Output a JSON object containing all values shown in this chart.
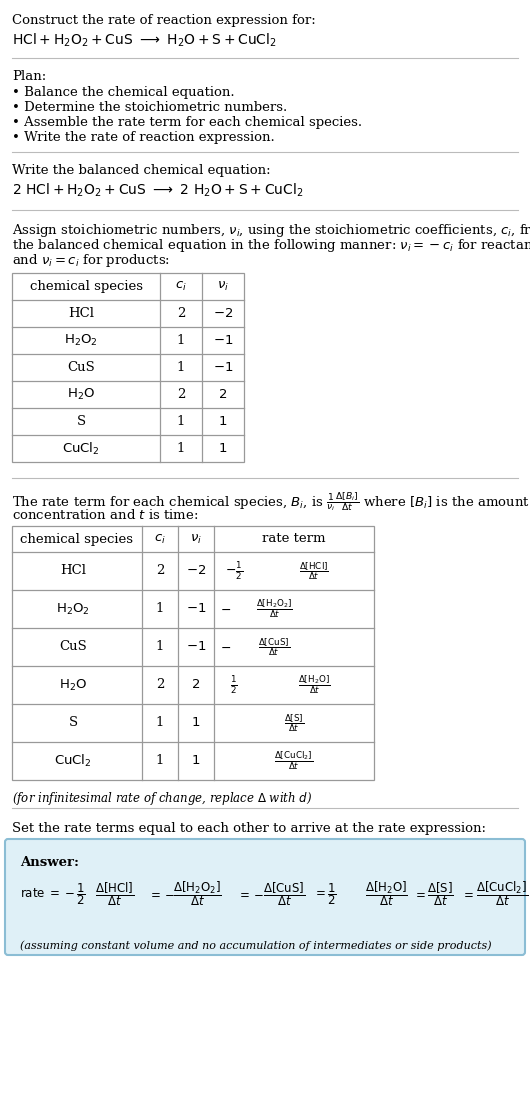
{
  "bg_color": "#ffffff",
  "text_color": "#000000",
  "title": "Construct the rate of reaction expression for:",
  "plan_header": "Plan:",
  "plan_items": [
    "• Balance the chemical equation.",
    "• Determine the stoichiometric numbers.",
    "• Assemble the rate term for each chemical species.",
    "• Write the rate of reaction expression."
  ],
  "balanced_header": "Write the balanced chemical equation:",
  "stoich_assign_lines": [
    "Assign stoichiometric numbers, $\\nu_i$, using the stoichiometric coefficients, $c_i$, from",
    "the balanced chemical equation in the following manner: $\\nu_i = -c_i$ for reactants",
    "and $\\nu_i = c_i$ for products:"
  ],
  "rate_term_line1": "The rate term for each chemical species, $B_i$, is $\\frac{1}{\\nu_i}\\frac{\\Delta[B_i]}{\\Delta t}$ where $[B_i]$ is the amount",
  "rate_term_line2": "concentration and $t$ is time:",
  "infinitesimal_note": "(for infinitesimal rate of change, replace $\\Delta$ with $d$)",
  "set_equal_text": "Set the rate terms equal to each other to arrive at the rate expression:",
  "answer_box_color": "#dff0f7",
  "answer_border_color": "#8bbdd4",
  "answer_label": "Answer:",
  "answer_note": "(assuming constant volume and no accumulation of intermediates or side products)",
  "font_size": 9.5,
  "line_sep": 14.5
}
